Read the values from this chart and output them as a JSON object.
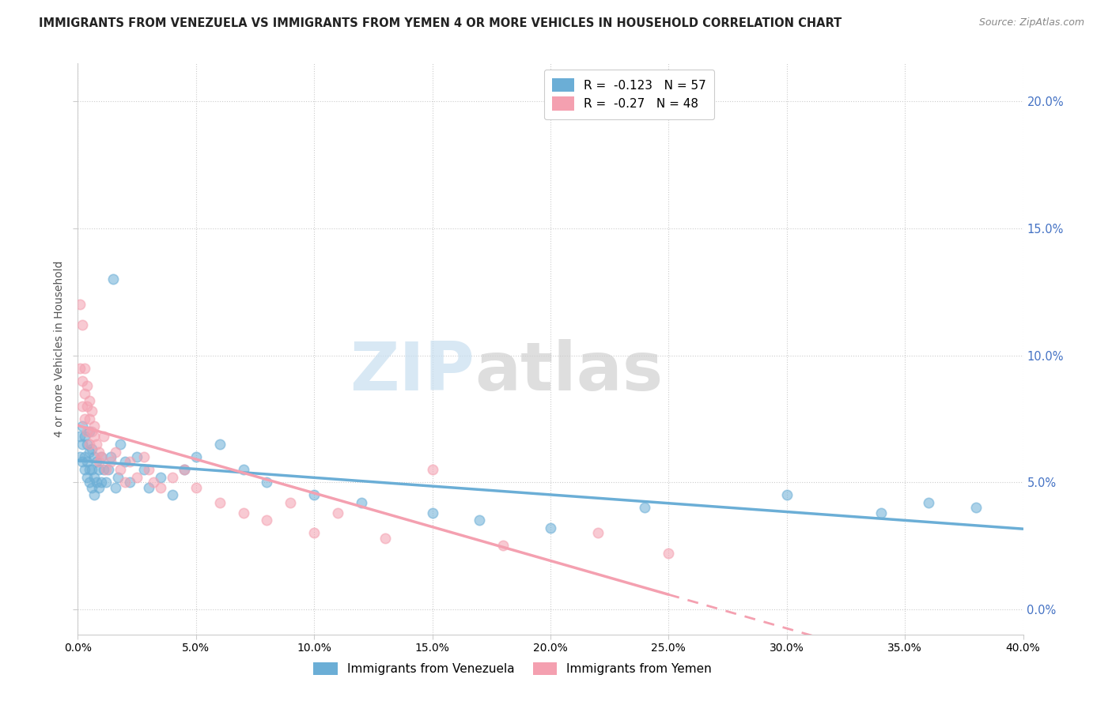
{
  "title": "IMMIGRANTS FROM VENEZUELA VS IMMIGRANTS FROM YEMEN 4 OR MORE VEHICLES IN HOUSEHOLD CORRELATION CHART",
  "source": "Source: ZipAtlas.com",
  "ylabel": "4 or more Vehicles in Household",
  "xlim": [
    0.0,
    0.4
  ],
  "ylim": [
    -0.01,
    0.215
  ],
  "xticks": [
    0.0,
    0.05,
    0.1,
    0.15,
    0.2,
    0.25,
    0.3,
    0.35,
    0.4
  ],
  "yticks": [
    0.0,
    0.05,
    0.1,
    0.15,
    0.2
  ],
  "legend1_label": "Immigrants from Venezuela",
  "legend2_label": "Immigrants from Yemen",
  "R_venezuela": -0.123,
  "N_venezuela": 57,
  "R_yemen": -0.27,
  "N_yemen": 48,
  "color_venezuela": "#6baed6",
  "color_yemen": "#f4a0b0",
  "watermark_zip": "ZIP",
  "watermark_atlas": "atlas",
  "venezuela_x": [
    0.001,
    0.001,
    0.002,
    0.002,
    0.002,
    0.003,
    0.003,
    0.003,
    0.004,
    0.004,
    0.004,
    0.005,
    0.005,
    0.005,
    0.005,
    0.006,
    0.006,
    0.006,
    0.007,
    0.007,
    0.007,
    0.008,
    0.008,
    0.009,
    0.009,
    0.01,
    0.01,
    0.011,
    0.012,
    0.013,
    0.014,
    0.015,
    0.016,
    0.017,
    0.018,
    0.02,
    0.022,
    0.025,
    0.028,
    0.03,
    0.035,
    0.04,
    0.045,
    0.05,
    0.06,
    0.07,
    0.08,
    0.1,
    0.12,
    0.15,
    0.17,
    0.2,
    0.24,
    0.3,
    0.34,
    0.36,
    0.38
  ],
  "venezuela_y": [
    0.068,
    0.06,
    0.058,
    0.065,
    0.072,
    0.055,
    0.06,
    0.068,
    0.052,
    0.058,
    0.065,
    0.05,
    0.055,
    0.062,
    0.07,
    0.048,
    0.055,
    0.063,
    0.045,
    0.052,
    0.06,
    0.05,
    0.058,
    0.048,
    0.055,
    0.05,
    0.06,
    0.055,
    0.05,
    0.055,
    0.06,
    0.13,
    0.048,
    0.052,
    0.065,
    0.058,
    0.05,
    0.06,
    0.055,
    0.048,
    0.052,
    0.045,
    0.055,
    0.06,
    0.065,
    0.055,
    0.05,
    0.045,
    0.042,
    0.038,
    0.035,
    0.032,
    0.04,
    0.045,
    0.038,
    0.042,
    0.04
  ],
  "yemen_x": [
    0.001,
    0.001,
    0.002,
    0.002,
    0.002,
    0.003,
    0.003,
    0.003,
    0.004,
    0.004,
    0.004,
    0.005,
    0.005,
    0.005,
    0.006,
    0.006,
    0.007,
    0.007,
    0.008,
    0.009,
    0.009,
    0.01,
    0.011,
    0.012,
    0.014,
    0.016,
    0.018,
    0.02,
    0.022,
    0.025,
    0.028,
    0.03,
    0.032,
    0.035,
    0.04,
    0.045,
    0.05,
    0.06,
    0.07,
    0.08,
    0.09,
    0.1,
    0.11,
    0.13,
    0.15,
    0.18,
    0.22,
    0.25
  ],
  "yemen_y": [
    0.12,
    0.095,
    0.112,
    0.09,
    0.08,
    0.085,
    0.075,
    0.095,
    0.07,
    0.08,
    0.088,
    0.065,
    0.075,
    0.082,
    0.07,
    0.078,
    0.068,
    0.072,
    0.065,
    0.058,
    0.062,
    0.06,
    0.068,
    0.055,
    0.058,
    0.062,
    0.055,
    0.05,
    0.058,
    0.052,
    0.06,
    0.055,
    0.05,
    0.048,
    0.052,
    0.055,
    0.048,
    0.042,
    0.038,
    0.035,
    0.042,
    0.03,
    0.038,
    0.028,
    0.055,
    0.025,
    0.03,
    0.022
  ]
}
